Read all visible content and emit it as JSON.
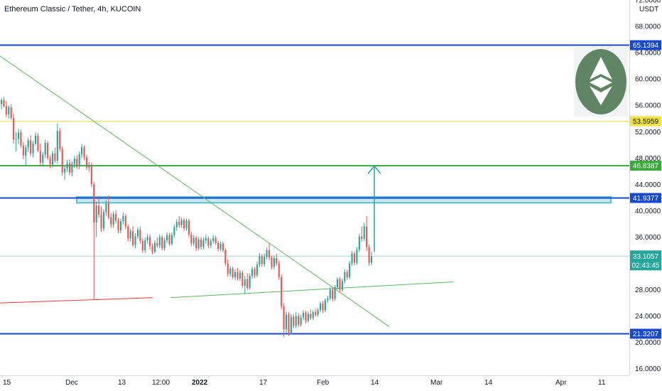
{
  "header": {
    "title": "Ethereum Classic / Tether, 4h, KUCOIN",
    "currency": "USDT"
  },
  "chart_data": {
    "type": "candlestick",
    "ylim": [
      15,
      72
    ],
    "y_ticks": [
      {
        "value": 72,
        "label": "72.0000"
      },
      {
        "value": 68,
        "label": "68.0000"
      },
      {
        "value": 64,
        "label": "64.0000"
      },
      {
        "value": 60,
        "label": "60.0000"
      },
      {
        "value": 56,
        "label": "56.0000"
      },
      {
        "value": 52,
        "label": "52.0000"
      },
      {
        "value": 48,
        "label": "48.0000"
      },
      {
        "value": 44,
        "label": "44.0000"
      },
      {
        "value": 40,
        "label": "40.0000"
      },
      {
        "value": 36,
        "label": "36.0000"
      },
      {
        "value": 28,
        "label": "28.0000"
      },
      {
        "value": 24,
        "label": "24.0000"
      },
      {
        "value": 20,
        "label": "20.0000"
      },
      {
        "value": 16,
        "label": "16.0000"
      }
    ],
    "x_ticks": [
      "15",
      "Dec",
      "13",
      "12:00",
      "2022",
      "17",
      "Feb",
      "14",
      "Mar",
      "14",
      "Apr",
      "11"
    ],
    "levels": [
      {
        "value": 65.1394,
        "label": "65.1394",
        "color": "#1848cc"
      },
      {
        "value": 53.5959,
        "label": "53.5959",
        "color": "#f2e33c"
      },
      {
        "value": 46.8387,
        "label": "46.8387",
        "color": "#3aa83a"
      },
      {
        "value": 41.9377,
        "label": "41.9377",
        "color": "#1848cc"
      },
      {
        "value": 21.3207,
        "label": "21.3207",
        "color": "#1848cc"
      }
    ],
    "current_price": {
      "value": 33.1057,
      "label": "33.1057",
      "countdown": "02:43:45",
      "color": "#26a69a"
    },
    "zone": {
      "from": 41.2,
      "to": 42.1,
      "color": "#5bc0d4"
    },
    "target_arrow": {
      "from": 33.8,
      "to": 46.8,
      "color": "#26a69a"
    },
    "trendlines": [
      {
        "color": "#5cb85c",
        "from": [
          0,
          63.5
        ],
        "to": [
          548,
          22.4
        ]
      },
      {
        "color": "#5cb85c",
        "from": [
          240,
          26.8
        ],
        "to": [
          638,
          29.2
        ]
      },
      {
        "color": "#e53935",
        "from": [
          0,
          26.0
        ],
        "to": [
          215,
          26.8
        ]
      }
    ],
    "candles": [
      {
        "o": 56.2,
        "h": 57.1,
        "l": 55.4,
        "c": 56.8
      },
      {
        "o": 56.8,
        "h": 57.3,
        "l": 55.7,
        "c": 55.9
      },
      {
        "o": 55.9,
        "h": 56.6,
        "l": 54.2,
        "c": 54.6
      },
      {
        "o": 54.6,
        "h": 56.0,
        "l": 54.0,
        "c": 55.7
      },
      {
        "o": 55.7,
        "h": 56.2,
        "l": 53.8,
        "c": 54.1
      },
      {
        "o": 54.1,
        "h": 54.8,
        "l": 50.2,
        "c": 50.8
      },
      {
        "o": 50.8,
        "h": 51.9,
        "l": 49.0,
        "c": 50.9
      },
      {
        "o": 50.9,
        "h": 52.4,
        "l": 50.1,
        "c": 51.9
      },
      {
        "o": 51.9,
        "h": 52.3,
        "l": 49.5,
        "c": 49.9
      },
      {
        "o": 49.9,
        "h": 50.4,
        "l": 47.8,
        "c": 48.4
      },
      {
        "o": 48.4,
        "h": 50.0,
        "l": 46.8,
        "c": 49.6
      },
      {
        "o": 49.6,
        "h": 51.1,
        "l": 48.9,
        "c": 50.7
      },
      {
        "o": 50.7,
        "h": 51.5,
        "l": 48.3,
        "c": 48.7
      },
      {
        "o": 48.7,
        "h": 50.6,
        "l": 48.1,
        "c": 50.2
      },
      {
        "o": 50.2,
        "h": 51.9,
        "l": 49.9,
        "c": 51.4
      },
      {
        "o": 51.4,
        "h": 51.8,
        "l": 48.9,
        "c": 49.1
      },
      {
        "o": 49.1,
        "h": 50.2,
        "l": 46.8,
        "c": 47.3
      },
      {
        "o": 47.3,
        "h": 48.9,
        "l": 46.7,
        "c": 48.5
      },
      {
        "o": 48.5,
        "h": 50.8,
        "l": 48.0,
        "c": 50.3
      },
      {
        "o": 50.3,
        "h": 50.6,
        "l": 47.7,
        "c": 48.0
      },
      {
        "o": 48.0,
        "h": 48.4,
        "l": 46.5,
        "c": 47.0
      },
      {
        "o": 47.0,
        "h": 49.1,
        "l": 46.6,
        "c": 48.7
      },
      {
        "o": 48.7,
        "h": 49.6,
        "l": 47.3,
        "c": 47.6
      },
      {
        "o": 47.6,
        "h": 53.3,
        "l": 47.2,
        "c": 52.1
      },
      {
        "o": 52.1,
        "h": 52.6,
        "l": 49.0,
        "c": 49.4
      },
      {
        "o": 49.4,
        "h": 49.8,
        "l": 45.3,
        "c": 45.8
      },
      {
        "o": 45.8,
        "h": 46.9,
        "l": 44.7,
        "c": 46.4
      },
      {
        "o": 46.4,
        "h": 47.7,
        "l": 45.9,
        "c": 47.2
      },
      {
        "o": 47.2,
        "h": 47.8,
        "l": 45.4,
        "c": 45.8
      },
      {
        "o": 45.8,
        "h": 47.5,
        "l": 45.2,
        "c": 47.1
      },
      {
        "o": 47.1,
        "h": 48.3,
        "l": 46.5,
        "c": 47.9
      },
      {
        "o": 47.9,
        "h": 48.4,
        "l": 46.4,
        "c": 46.8
      },
      {
        "o": 46.8,
        "h": 49.0,
        "l": 46.3,
        "c": 48.6
      },
      {
        "o": 48.6,
        "h": 50.1,
        "l": 48.0,
        "c": 49.6
      },
      {
        "o": 49.6,
        "h": 49.9,
        "l": 47.7,
        "c": 48.1
      },
      {
        "o": 48.1,
        "h": 48.5,
        "l": 46.2,
        "c": 46.6
      },
      {
        "o": 46.6,
        "h": 47.4,
        "l": 45.9,
        "c": 47.0
      },
      {
        "o": 47.0,
        "h": 47.3,
        "l": 43.6,
        "c": 44.0
      },
      {
        "o": 44.0,
        "h": 44.4,
        "l": 26.5,
        "c": 38.2
      },
      {
        "o": 38.2,
        "h": 41.4,
        "l": 36.0,
        "c": 40.8
      },
      {
        "o": 40.8,
        "h": 42.2,
        "l": 38.9,
        "c": 39.4
      },
      {
        "o": 39.4,
        "h": 40.6,
        "l": 36.8,
        "c": 37.3
      },
      {
        "o": 37.3,
        "h": 40.2,
        "l": 36.9,
        "c": 39.8
      },
      {
        "o": 39.8,
        "h": 41.6,
        "l": 39.2,
        "c": 41.1
      },
      {
        "o": 41.1,
        "h": 42.3,
        "l": 38.7,
        "c": 39.0
      },
      {
        "o": 39.0,
        "h": 39.6,
        "l": 37.4,
        "c": 37.9
      },
      {
        "o": 37.9,
        "h": 39.9,
        "l": 37.4,
        "c": 39.5
      },
      {
        "o": 39.5,
        "h": 40.1,
        "l": 38.1,
        "c": 38.5
      },
      {
        "o": 38.5,
        "h": 38.9,
        "l": 36.6,
        "c": 37.0
      },
      {
        "o": 37.0,
        "h": 38.8,
        "l": 36.6,
        "c": 38.4
      },
      {
        "o": 38.4,
        "h": 39.7,
        "l": 37.9,
        "c": 39.2
      },
      {
        "o": 39.2,
        "h": 39.5,
        "l": 37.2,
        "c": 37.6
      },
      {
        "o": 37.6,
        "h": 37.9,
        "l": 35.4,
        "c": 35.8
      },
      {
        "o": 35.8,
        "h": 37.3,
        "l": 35.3,
        "c": 36.9
      },
      {
        "o": 36.9,
        "h": 37.7,
        "l": 34.5,
        "c": 34.8
      },
      {
        "o": 34.8,
        "h": 36.6,
        "l": 34.3,
        "c": 36.1
      },
      {
        "o": 36.1,
        "h": 37.5,
        "l": 35.7,
        "c": 37.1
      },
      {
        "o": 37.1,
        "h": 37.6,
        "l": 35.0,
        "c": 35.4
      },
      {
        "o": 35.4,
        "h": 35.8,
        "l": 33.6,
        "c": 34.0
      },
      {
        "o": 34.0,
        "h": 35.9,
        "l": 33.6,
        "c": 35.5
      },
      {
        "o": 35.5,
        "h": 36.5,
        "l": 35.0,
        "c": 36.0
      },
      {
        "o": 36.0,
        "h": 36.4,
        "l": 34.1,
        "c": 34.6
      },
      {
        "o": 34.6,
        "h": 35.0,
        "l": 33.4,
        "c": 33.8
      },
      {
        "o": 33.8,
        "h": 35.5,
        "l": 33.5,
        "c": 35.1
      },
      {
        "o": 35.1,
        "h": 35.9,
        "l": 34.4,
        "c": 34.7
      },
      {
        "o": 34.7,
        "h": 36.4,
        "l": 34.3,
        "c": 36.0
      },
      {
        "o": 36.0,
        "h": 36.3,
        "l": 34.0,
        "c": 34.3
      },
      {
        "o": 34.3,
        "h": 35.9,
        "l": 33.9,
        "c": 35.5
      },
      {
        "o": 35.5,
        "h": 36.7,
        "l": 35.1,
        "c": 36.3
      },
      {
        "o": 36.3,
        "h": 36.6,
        "l": 34.7,
        "c": 35.0
      },
      {
        "o": 35.0,
        "h": 36.7,
        "l": 34.7,
        "c": 36.3
      },
      {
        "o": 36.3,
        "h": 37.9,
        "l": 35.9,
        "c": 37.5
      },
      {
        "o": 37.5,
        "h": 38.7,
        "l": 37.0,
        "c": 38.3
      },
      {
        "o": 38.3,
        "h": 39.2,
        "l": 37.4,
        "c": 37.8
      },
      {
        "o": 37.8,
        "h": 39.0,
        "l": 37.4,
        "c": 38.6
      },
      {
        "o": 38.6,
        "h": 38.9,
        "l": 36.9,
        "c": 37.3
      },
      {
        "o": 37.3,
        "h": 38.8,
        "l": 37.0,
        "c": 38.5
      },
      {
        "o": 38.5,
        "h": 38.8,
        "l": 36.0,
        "c": 36.4
      },
      {
        "o": 36.4,
        "h": 36.8,
        "l": 34.6,
        "c": 35.0
      },
      {
        "o": 35.0,
        "h": 36.3,
        "l": 34.6,
        "c": 35.9
      },
      {
        "o": 35.9,
        "h": 36.2,
        "l": 33.9,
        "c": 34.3
      },
      {
        "o": 34.3,
        "h": 36.0,
        "l": 34.0,
        "c": 35.6
      },
      {
        "o": 35.6,
        "h": 36.0,
        "l": 34.1,
        "c": 34.5
      },
      {
        "o": 34.5,
        "h": 35.9,
        "l": 34.2,
        "c": 35.5
      },
      {
        "o": 35.5,
        "h": 36.4,
        "l": 35.0,
        "c": 35.8
      },
      {
        "o": 35.8,
        "h": 36.1,
        "l": 34.3,
        "c": 34.7
      },
      {
        "o": 34.7,
        "h": 35.8,
        "l": 34.3,
        "c": 35.4
      },
      {
        "o": 35.4,
        "h": 36.3,
        "l": 35.0,
        "c": 35.9
      },
      {
        "o": 35.9,
        "h": 36.2,
        "l": 34.8,
        "c": 35.1
      },
      {
        "o": 35.1,
        "h": 35.4,
        "l": 33.8,
        "c": 34.2
      },
      {
        "o": 34.2,
        "h": 35.3,
        "l": 33.9,
        "c": 35.0
      },
      {
        "o": 35.0,
        "h": 35.3,
        "l": 33.7,
        "c": 34.0
      },
      {
        "o": 34.0,
        "h": 34.3,
        "l": 31.6,
        "c": 32.0
      },
      {
        "o": 32.0,
        "h": 32.6,
        "l": 30.0,
        "c": 30.4
      },
      {
        "o": 30.4,
        "h": 31.6,
        "l": 30.0,
        "c": 31.2
      },
      {
        "o": 31.2,
        "h": 31.5,
        "l": 29.6,
        "c": 29.9
      },
      {
        "o": 29.9,
        "h": 31.1,
        "l": 29.5,
        "c": 30.7
      },
      {
        "o": 30.7,
        "h": 31.3,
        "l": 29.4,
        "c": 29.7
      },
      {
        "o": 29.7,
        "h": 31.0,
        "l": 29.3,
        "c": 30.6
      },
      {
        "o": 30.6,
        "h": 30.9,
        "l": 28.3,
        "c": 28.6
      },
      {
        "o": 28.6,
        "h": 30.1,
        "l": 27.3,
        "c": 29.6
      },
      {
        "o": 29.6,
        "h": 30.5,
        "l": 28.0,
        "c": 28.3
      },
      {
        "o": 28.3,
        "h": 30.5,
        "l": 28.0,
        "c": 30.1
      },
      {
        "o": 30.1,
        "h": 31.5,
        "l": 29.7,
        "c": 31.1
      },
      {
        "o": 31.1,
        "h": 31.4,
        "l": 29.8,
        "c": 30.2
      },
      {
        "o": 30.2,
        "h": 32.3,
        "l": 29.9,
        "c": 31.8
      },
      {
        "o": 31.8,
        "h": 33.6,
        "l": 31.4,
        "c": 33.1
      },
      {
        "o": 33.1,
        "h": 33.4,
        "l": 31.5,
        "c": 31.9
      },
      {
        "o": 31.9,
        "h": 33.5,
        "l": 31.5,
        "c": 33.0
      },
      {
        "o": 33.0,
        "h": 34.4,
        "l": 32.6,
        "c": 34.0
      },
      {
        "o": 34.0,
        "h": 35.1,
        "l": 32.5,
        "c": 32.9
      },
      {
        "o": 32.9,
        "h": 33.2,
        "l": 31.1,
        "c": 31.5
      },
      {
        "o": 31.5,
        "h": 33.2,
        "l": 31.1,
        "c": 32.8
      },
      {
        "o": 32.8,
        "h": 33.5,
        "l": 31.6,
        "c": 32.0
      },
      {
        "o": 32.0,
        "h": 32.4,
        "l": 29.5,
        "c": 29.9
      },
      {
        "o": 29.9,
        "h": 30.3,
        "l": 25.0,
        "c": 25.5
      },
      {
        "o": 25.5,
        "h": 26.0,
        "l": 20.8,
        "c": 22.0
      },
      {
        "o": 22.0,
        "h": 24.7,
        "l": 21.4,
        "c": 24.2
      },
      {
        "o": 24.2,
        "h": 24.6,
        "l": 21.0,
        "c": 21.5
      },
      {
        "o": 21.5,
        "h": 24.3,
        "l": 21.2,
        "c": 23.9
      },
      {
        "o": 23.9,
        "h": 24.3,
        "l": 22.1,
        "c": 22.5
      },
      {
        "o": 22.5,
        "h": 24.6,
        "l": 22.2,
        "c": 24.0
      },
      {
        "o": 24.0,
        "h": 24.4,
        "l": 22.3,
        "c": 22.7
      },
      {
        "o": 22.7,
        "h": 24.2,
        "l": 22.4,
        "c": 23.8
      },
      {
        "o": 23.8,
        "h": 24.9,
        "l": 23.4,
        "c": 24.5
      },
      {
        "o": 24.5,
        "h": 24.8,
        "l": 22.9,
        "c": 23.3
      },
      {
        "o": 23.3,
        "h": 24.7,
        "l": 23.0,
        "c": 24.3
      },
      {
        "o": 24.3,
        "h": 25.0,
        "l": 23.4,
        "c": 23.7
      },
      {
        "o": 23.7,
        "h": 24.9,
        "l": 23.4,
        "c": 24.6
      },
      {
        "o": 24.6,
        "h": 25.1,
        "l": 23.9,
        "c": 24.2
      },
      {
        "o": 24.2,
        "h": 25.2,
        "l": 23.9,
        "c": 24.9
      },
      {
        "o": 24.9,
        "h": 26.2,
        "l": 24.6,
        "c": 25.9
      },
      {
        "o": 25.9,
        "h": 26.3,
        "l": 24.5,
        "c": 24.9
      },
      {
        "o": 24.9,
        "h": 26.7,
        "l": 24.6,
        "c": 26.4
      },
      {
        "o": 26.4,
        "h": 27.1,
        "l": 26.0,
        "c": 26.7
      },
      {
        "o": 26.7,
        "h": 28.4,
        "l": 26.4,
        "c": 28.0
      },
      {
        "o": 28.0,
        "h": 28.4,
        "l": 26.2,
        "c": 26.6
      },
      {
        "o": 26.6,
        "h": 28.7,
        "l": 26.3,
        "c": 28.4
      },
      {
        "o": 28.4,
        "h": 29.9,
        "l": 28.0,
        "c": 29.6
      },
      {
        "o": 29.6,
        "h": 29.9,
        "l": 27.6,
        "c": 28.0
      },
      {
        "o": 28.0,
        "h": 29.7,
        "l": 27.7,
        "c": 29.3
      },
      {
        "o": 29.3,
        "h": 31.1,
        "l": 29.0,
        "c": 30.7
      },
      {
        "o": 30.7,
        "h": 31.0,
        "l": 29.5,
        "c": 29.9
      },
      {
        "o": 29.9,
        "h": 32.4,
        "l": 29.6,
        "c": 32.0
      },
      {
        "o": 32.0,
        "h": 33.9,
        "l": 31.6,
        "c": 33.5
      },
      {
        "o": 33.5,
        "h": 33.8,
        "l": 31.7,
        "c": 32.1
      },
      {
        "o": 32.1,
        "h": 34.5,
        "l": 31.8,
        "c": 34.1
      },
      {
        "o": 34.1,
        "h": 36.5,
        "l": 33.7,
        "c": 36.1
      },
      {
        "o": 36.1,
        "h": 37.6,
        "l": 35.3,
        "c": 35.7
      },
      {
        "o": 35.7,
        "h": 38.2,
        "l": 35.4,
        "c": 37.6
      },
      {
        "o": 37.6,
        "h": 39.2,
        "l": 33.9,
        "c": 34.5
      },
      {
        "o": 34.5,
        "h": 34.9,
        "l": 31.6,
        "c": 32.1
      },
      {
        "o": 32.1,
        "h": 33.8,
        "l": 31.7,
        "c": 33.1
      }
    ]
  }
}
